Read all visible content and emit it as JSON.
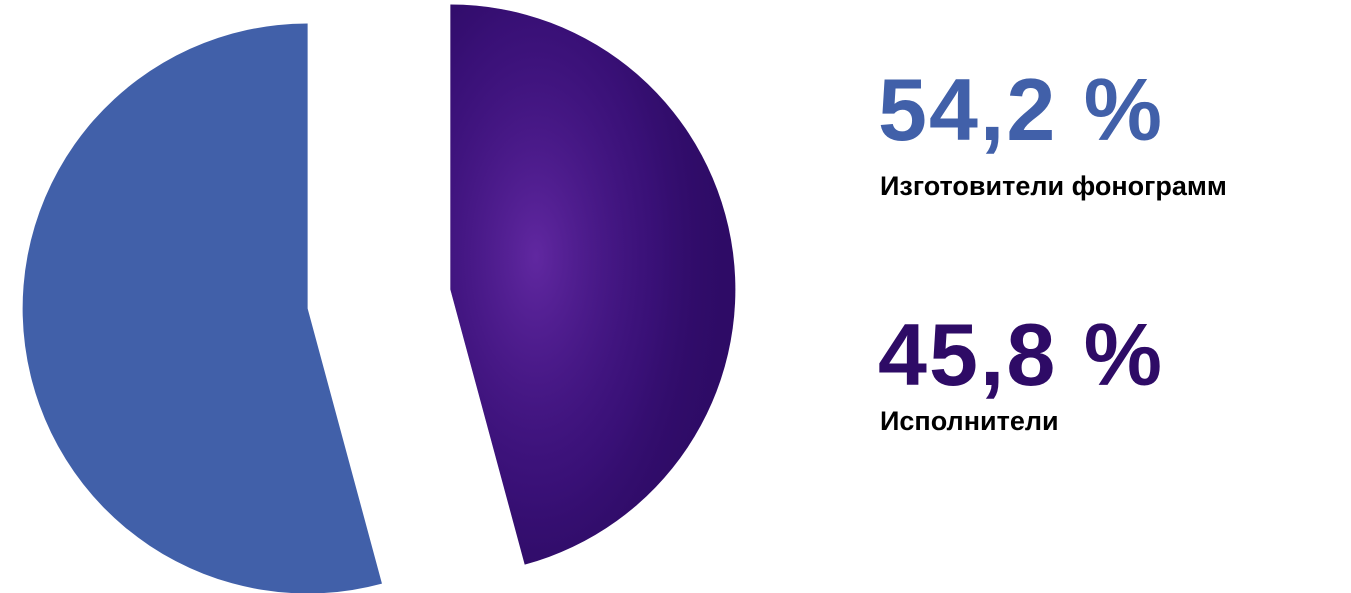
{
  "chart_data": {
    "type": "pie",
    "categories": [
      "Изготовители фонограмм",
      "Исполнители"
    ],
    "values": [
      54.2,
      45.8
    ],
    "value_labels": [
      "54,2 %",
      "45,8 %"
    ],
    "colors": [
      "#4160a9",
      "#2e0b66"
    ]
  }
}
